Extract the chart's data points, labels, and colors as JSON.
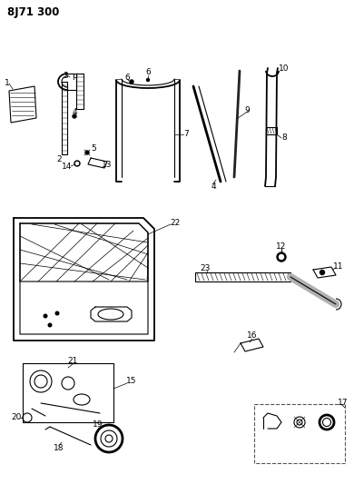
{
  "title": "8J71 300",
  "bg_color": "#ffffff",
  "line_color": "#000000",
  "title_fontsize": 8.5,
  "label_fontsize": 6.5,
  "fig_width": 4.01,
  "fig_height": 5.33,
  "dpi": 100
}
